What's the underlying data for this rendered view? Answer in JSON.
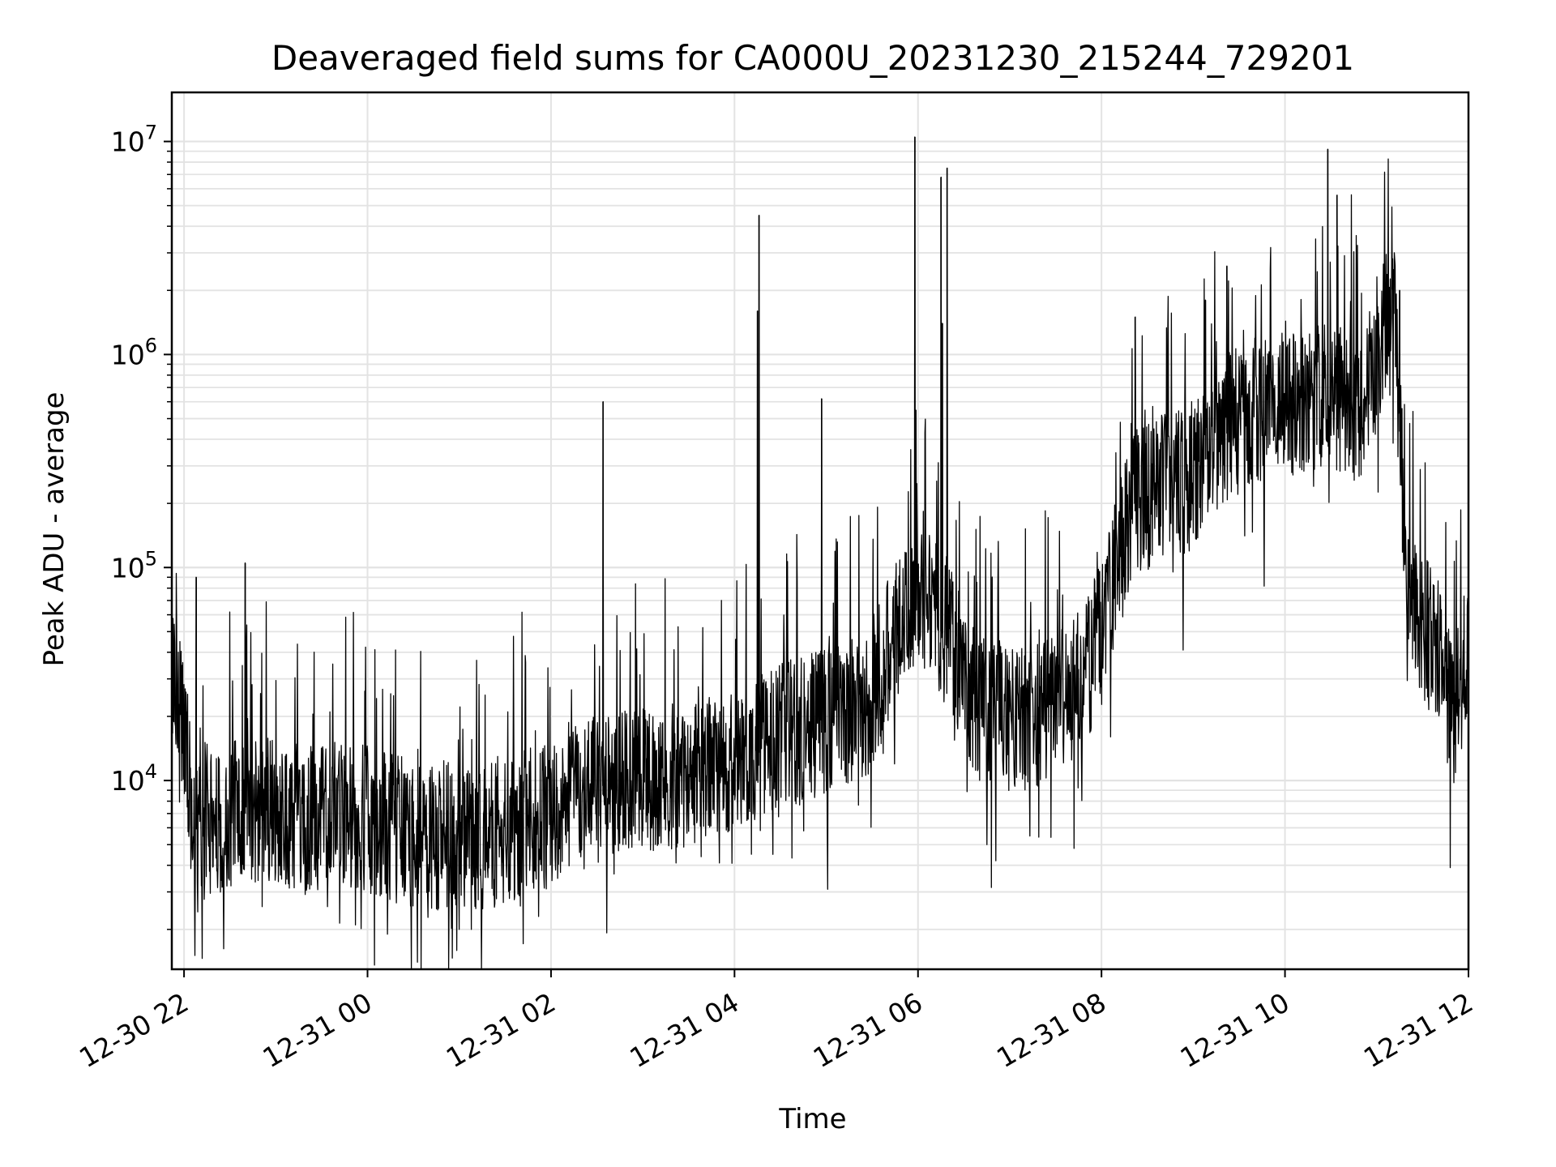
{
  "chart_data": {
    "type": "line",
    "title": "Deaveraged field sums for CA000U_20231230_215244_729201",
    "xlabel": "Time",
    "ylabel": "Peak ADU - average",
    "yscale": "log",
    "xlim": [
      "2023-12-30 21:52",
      "2023-12-31 12:00"
    ],
    "ylim": [
      1300,
      17000000
    ],
    "grid": true,
    "line_color": "#000000",
    "x_ticks": [
      {
        "t": "2023-12-30 22:00",
        "label": "12-30 22"
      },
      {
        "t": "2023-12-31 00:00",
        "label": "12-31 00"
      },
      {
        "t": "2023-12-31 02:00",
        "label": "12-31 02"
      },
      {
        "t": "2023-12-31 04:00",
        "label": "12-31 04"
      },
      {
        "t": "2023-12-31 06:00",
        "label": "12-31 06"
      },
      {
        "t": "2023-12-31 08:00",
        "label": "12-31 08"
      },
      {
        "t": "2023-12-31 10:00",
        "label": "12-31 10"
      },
      {
        "t": "2023-12-31 12:00",
        "label": "12-31 12"
      }
    ],
    "y_ticks": [
      {
        "value": 10000,
        "base": "10",
        "exp": "4"
      },
      {
        "value": 100000,
        "base": "10",
        "exp": "5"
      },
      {
        "value": 1000000,
        "base": "10",
        "exp": "6"
      },
      {
        "value": 10000000,
        "base": "10",
        "exp": "7"
      }
    ],
    "baseline": [
      [
        "2023-12-30 21:52",
        28000
      ],
      [
        "2023-12-30 22:00",
        18000
      ],
      [
        "2023-12-30 22:05",
        6000
      ],
      [
        "2023-12-30 22:20",
        5500
      ],
      [
        "2023-12-30 22:40",
        7000
      ],
      [
        "2023-12-30 23:00",
        6500
      ],
      [
        "2023-12-30 23:20",
        6000
      ],
      [
        "2023-12-30 23:40",
        6500
      ],
      [
        "2023-12-31 00:00",
        6000
      ],
      [
        "2023-12-31 00:30",
        5200
      ],
      [
        "2023-12-31 01:00",
        5000
      ],
      [
        "2023-12-31 01:30",
        5200
      ],
      [
        "2023-12-31 02:00",
        6500
      ],
      [
        "2023-12-31 02:30",
        8500
      ],
      [
        "2023-12-31 03:00",
        9000
      ],
      [
        "2023-12-31 03:30",
        10000
      ],
      [
        "2023-12-31 04:00",
        12000
      ],
      [
        "2023-12-31 04:30",
        15000
      ],
      [
        "2023-12-31 05:00",
        17000
      ],
      [
        "2023-12-31 05:30",
        22000
      ],
      [
        "2023-12-31 05:50",
        60000
      ],
      [
        "2023-12-31 06:00",
        70000
      ],
      [
        "2023-12-31 06:20",
        45000
      ],
      [
        "2023-12-31 06:40",
        20000
      ],
      [
        "2023-12-31 07:00",
        18000
      ],
      [
        "2023-12-31 07:30",
        20000
      ],
      [
        "2023-12-31 07:50",
        30000
      ],
      [
        "2023-12-31 08:00",
        45000
      ],
      [
        "2023-12-31 08:20",
        180000
      ],
      [
        "2023-12-31 08:40",
        220000
      ],
      [
        "2023-12-31 09:00",
        250000
      ],
      [
        "2023-12-31 09:15",
        400000
      ],
      [
        "2023-12-31 09:40",
        500000
      ],
      [
        "2023-12-31 10:00",
        550000
      ],
      [
        "2023-12-31 10:30",
        600000
      ],
      [
        "2023-12-31 10:50",
        500000
      ],
      [
        "2023-12-31 11:05",
        1200000
      ],
      [
        "2023-12-31 11:12",
        1300000
      ],
      [
        "2023-12-31 11:20",
        70000
      ],
      [
        "2023-12-31 11:40",
        35000
      ],
      [
        "2023-12-31 11:50",
        18000
      ],
      [
        "2023-12-31 12:00",
        40000
      ]
    ],
    "spikes": [
      [
        "2023-12-30 22:08",
        90000
      ],
      [
        "2023-12-30 22:40",
        105000
      ],
      [
        "2023-12-31 02:34",
        600000
      ],
      [
        "2023-12-31 04:15",
        1600000
      ],
      [
        "2023-12-31 04:16",
        4500000
      ],
      [
        "2023-12-31 04:57",
        620000
      ],
      [
        "2023-12-31 05:58",
        10500000
      ],
      [
        "2023-12-31 06:15",
        6800000
      ],
      [
        "2023-12-31 06:19",
        7500000
      ],
      [
        "2023-12-31 06:16",
        1400000
      ],
      [
        "2023-12-31 08:22",
        1500000
      ],
      [
        "2023-12-31 09:08",
        1800000
      ],
      [
        "2023-12-31 09:22",
        2600000
      ],
      [
        "2023-12-31 10:28",
        9200000
      ],
      [
        "2023-12-31 10:34",
        5600000
      ],
      [
        "2023-12-31 11:15",
        2000000
      ]
    ],
    "dips": [
      [
        "2023-12-30 23:52",
        2100
      ],
      [
        "2023-12-31 00:13",
        1900
      ],
      [
        "2023-12-31 01:00",
        2000
      ],
      [
        "2023-12-31 01:08",
        2000
      ],
      [
        "2023-12-31 01:52",
        2300
      ],
      [
        "2023-12-31 06:45",
        5000
      ],
      [
        "2023-12-31 06:51",
        4200
      ],
      [
        "2023-12-31 07:42",
        4800
      ],
      [
        "2023-12-31 11:48",
        3900
      ]
    ]
  }
}
